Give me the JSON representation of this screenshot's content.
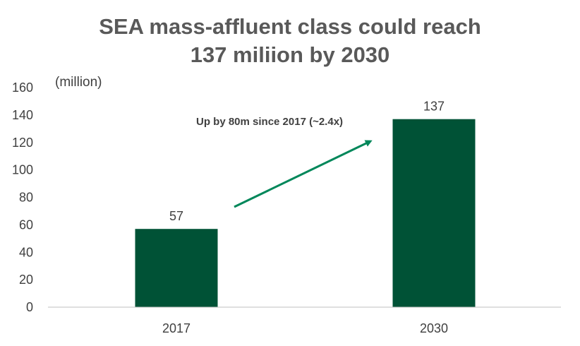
{
  "chart_data": {
    "type": "bar",
    "title_line1": "SEA mass-affluent class could reach",
    "title_line2": "137 miliion by 2030",
    "ylabel": "(million)",
    "categories": [
      "2017",
      "2030"
    ],
    "values": [
      57,
      137
    ],
    "data_labels": [
      "57",
      "137"
    ],
    "ylim": [
      0,
      160
    ],
    "yticks": [
      "0",
      "20",
      "40",
      "60",
      "80",
      "100",
      "120",
      "140",
      "160"
    ],
    "annotation": "Up by 80m since 2017 (~2.4x)",
    "grid": false,
    "legend": "none",
    "colors": {
      "bar": "#005236",
      "arrow": "#00875A",
      "text": "#404040",
      "title": "#595959"
    }
  }
}
